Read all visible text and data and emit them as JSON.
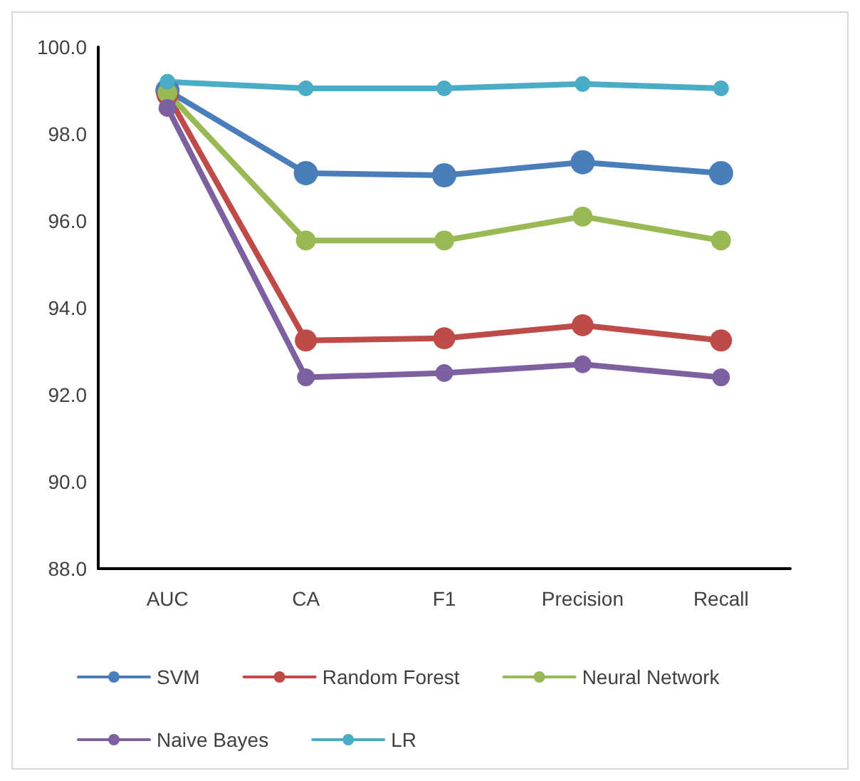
{
  "chart_data": {
    "type": "line",
    "categories": [
      "AUC",
      "CA",
      "F1",
      "Precision",
      "Recall"
    ],
    "series": [
      {
        "name": "SVM",
        "color": "#4a7ebb",
        "values": [
          99.0,
          97.1,
          97.05,
          97.35,
          97.1
        ]
      },
      {
        "name": "Random Forest",
        "color": "#be4b48",
        "values": [
          98.9,
          93.25,
          93.3,
          93.6,
          93.25
        ]
      },
      {
        "name": "Neural Network",
        "color": "#98b954",
        "values": [
          98.95,
          95.55,
          95.55,
          96.1,
          95.55
        ]
      },
      {
        "name": "Naive Bayes",
        "color": "#7d60a0",
        "values": [
          98.6,
          92.4,
          92.5,
          92.7,
          92.4
        ]
      },
      {
        "name": "LR",
        "color": "#4bacc6",
        "values": [
          99.2,
          99.05,
          99.05,
          99.15,
          99.05
        ]
      }
    ],
    "ylim": [
      88,
      100
    ],
    "yticks": [
      {
        "value": 88,
        "label": "88.0"
      },
      {
        "value": 90,
        "label": "90.0"
      },
      {
        "value": 92,
        "label": "92.0"
      },
      {
        "value": 94,
        "label": "94.0"
      },
      {
        "value": 96,
        "label": "96.0"
      },
      {
        "value": 98,
        "label": "98.0"
      },
      {
        "value": 100,
        "label": "100.0"
      }
    ],
    "grid": false,
    "legend": "bottom",
    "marker": "circle",
    "line_style": "solid"
  }
}
